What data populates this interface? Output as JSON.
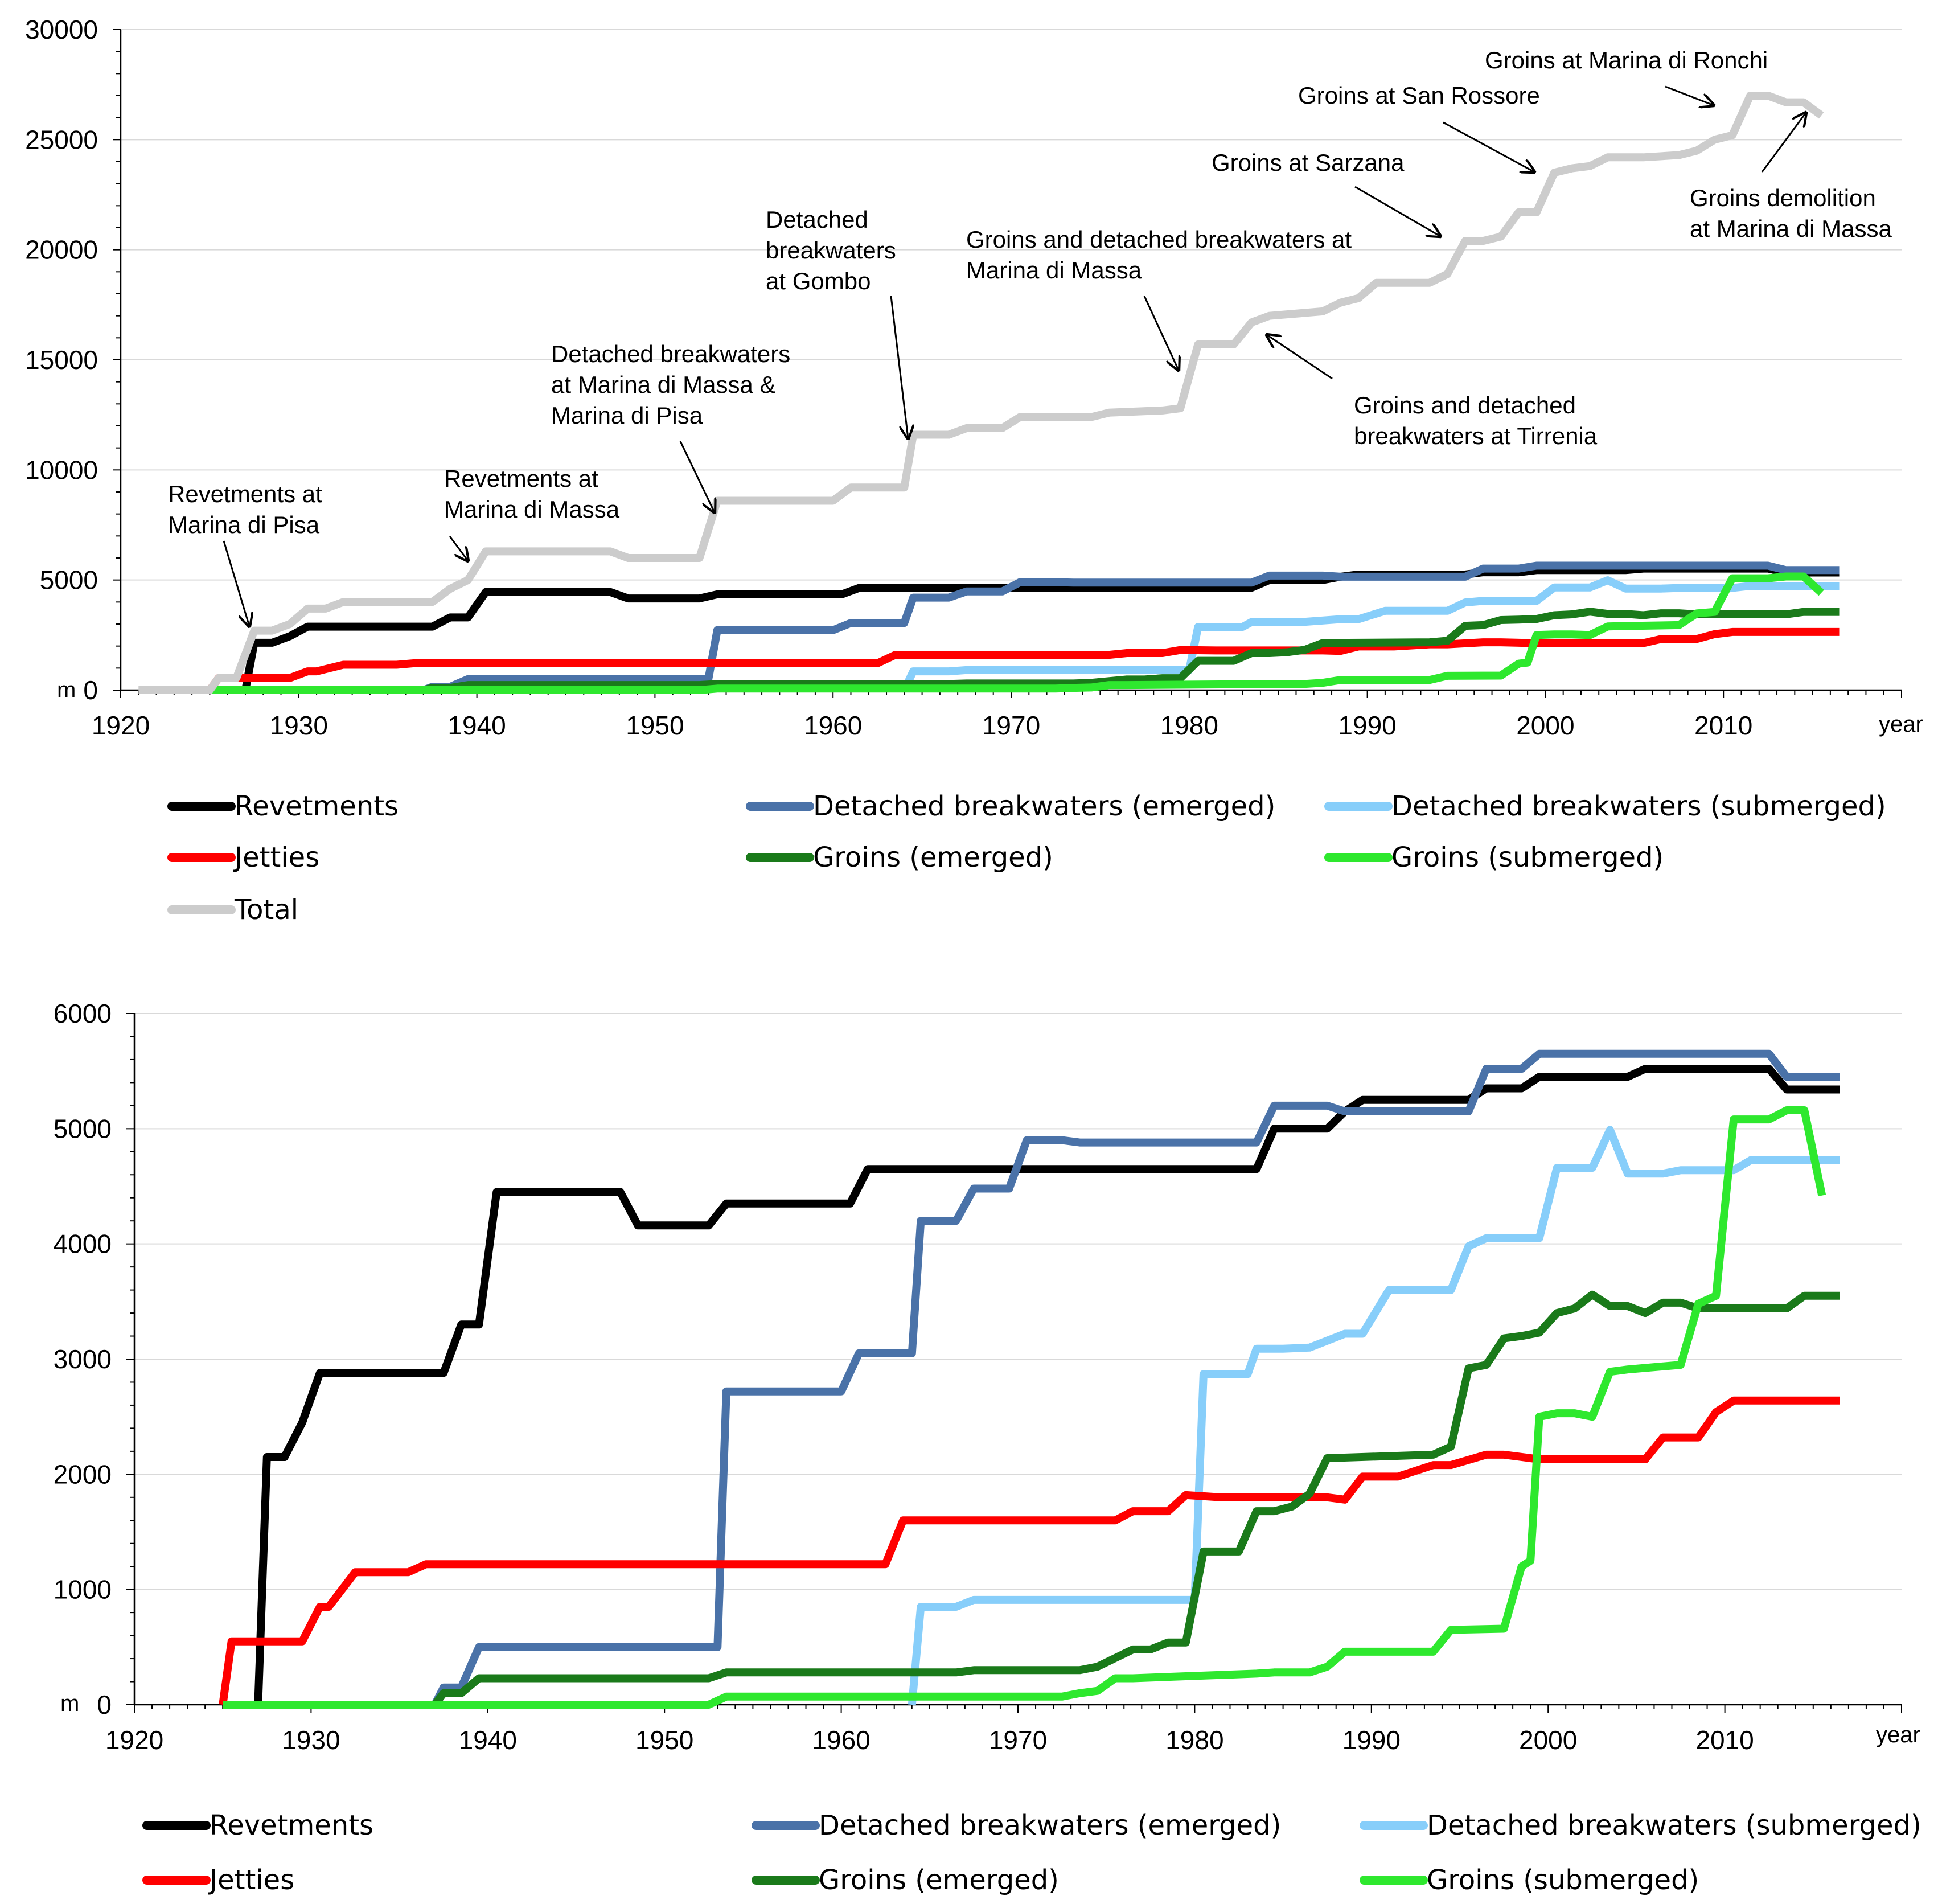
{
  "chart_data": [
    {
      "type": "line",
      "title": "",
      "xlabel": "year",
      "ylabel": "m",
      "xlim": [
        1920,
        2020
      ],
      "ylim": [
        0,
        30000
      ],
      "xticks": [
        1920,
        1930,
        1940,
        1950,
        1960,
        1970,
        1980,
        1990,
        2000,
        2010
      ],
      "yticks": [
        0,
        5000,
        10000,
        15000,
        20000,
        25000,
        30000
      ],
      "grid": true,
      "legend": "below",
      "series_keys": [
        "revetments",
        "db_emerged",
        "db_submerged",
        "jetties",
        "groins_emerged",
        "groins_submerged",
        "total"
      ],
      "annotations": [
        {
          "lines": [
            "Revetments at",
            "Marina di Pisa"
          ],
          "x": 1927,
          "y": 2800
        },
        {
          "lines": [
            "Revetments at",
            "Marina di Massa"
          ],
          "x": 1939.5,
          "y": 5900
        },
        {
          "lines": [
            "Detached breakwaters",
            "at Marina di Massa &",
            "Marina di Pisa"
          ],
          "x": 1953.5,
          "y": 8300
        },
        {
          "lines": [
            "Detached",
            "breakwaters",
            "at Gombo"
          ],
          "x": 1964.5,
          "y": 11300
        },
        {
          "lines": [
            "Groins and detached breakwaters at",
            "Marina di Massa"
          ],
          "x": 1979.5,
          "y": 14700
        },
        {
          "lines": [
            "Groins and detached",
            "breakwaters at Tirrenia"
          ],
          "x": 1985,
          "y": 16300
        },
        {
          "lines": [
            "Groins at Sarzana"
          ],
          "x": 1996,
          "y": 20500
        },
        {
          "lines": [
            "Groins at San Rossore"
          ],
          "x": 2000,
          "y": 23500
        },
        {
          "lines": [
            "Groins at Marina di Ronchi"
          ],
          "x": 2011,
          "y": 26800
        },
        {
          "lines": [
            "Groins demolition",
            "at Marina di Massa"
          ],
          "x": 2014.5,
          "y": 26500
        }
      ]
    },
    {
      "type": "line",
      "title": "",
      "xlabel": "year",
      "ylabel": "m",
      "xlim": [
        1920,
        2020
      ],
      "ylim": [
        0,
        6000
      ],
      "xticks": [
        1920,
        1930,
        1940,
        1950,
        1960,
        1970,
        1980,
        1990,
        2000,
        2010
      ],
      "yticks": [
        0,
        1000,
        2000,
        3000,
        4000,
        5000,
        6000
      ],
      "grid": true,
      "legend": "below",
      "series_keys": [
        "revetments",
        "db_emerged",
        "db_submerged",
        "jetties",
        "groins_emerged",
        "groins_submerged"
      ]
    }
  ],
  "series": {
    "revetments": {
      "name": "Revetments",
      "color": "#000000",
      "x": [
        1927,
        1927.5,
        1928.5,
        1929.5,
        1930.5,
        1931.5,
        1937.5,
        1938.5,
        1939.5,
        1940.5,
        1947.5,
        1948.5,
        1952.5,
        1953.5,
        1960.5,
        1961.5,
        1983.5,
        1984.5,
        1987.5,
        1988.5,
        1989.5,
        1995.5,
        1996.5,
        1998.5,
        1999.5,
        2004.5,
        2005.5,
        2012.5,
        2013.5,
        2016.5
      ],
      "y": [
        0,
        2150,
        2150,
        2450,
        2880,
        2880,
        2880,
        3300,
        3300,
        4450,
        4450,
        4160,
        4160,
        4350,
        4350,
        4650,
        4650,
        5000,
        5000,
        5150,
        5250,
        5250,
        5350,
        5350,
        5450,
        5450,
        5520,
        5520,
        5340,
        5340
      ]
    },
    "db_emerged": {
      "name": "Detached breakwaters (emerged)",
      "color": "#4a72a8",
      "x": [
        1937,
        1937.5,
        1938.5,
        1939.5,
        1940.5,
        1953,
        1953.5,
        1960,
        1961,
        1964,
        1964.5,
        1966.5,
        1967.5,
        1969.5,
        1970.5,
        1972.5,
        1973.5,
        1983.5,
        1984.5,
        1987.5,
        1988.5,
        1995.5,
        1996.5,
        1998.5,
        1999.5,
        2012.5,
        2013.5,
        2016.5
      ],
      "y": [
        0,
        150,
        150,
        500,
        500,
        500,
        2720,
        2720,
        3050,
        3050,
        4200,
        4200,
        4480,
        4480,
        4900,
        4900,
        4880,
        4880,
        5200,
        5200,
        5150,
        5150,
        5520,
        5520,
        5650,
        5650,
        5450,
        5450
      ]
    },
    "db_submerged": {
      "name": "Detached breakwaters (submerged)",
      "color": "#87cefa",
      "x": [
        1964,
        1964.5,
        1966.5,
        1967.5,
        1980,
        1980.5,
        1983,
        1983.5,
        1985,
        1986.5,
        1988.5,
        1989.5,
        1991,
        1991.5,
        1994.5,
        1995.5,
        1996.5,
        1999.5,
        2000.5,
        2002.5,
        2003.5,
        2004.5,
        2006.5,
        2007.5,
        2010.5,
        2011.5,
        2016.5
      ],
      "y": [
        0,
        850,
        850,
        910,
        910,
        2870,
        2870,
        3090,
        3090,
        3100,
        3220,
        3220,
        3600,
        3600,
        3600,
        3980,
        4050,
        4050,
        4660,
        4660,
        4990,
        4610,
        4610,
        4640,
        4640,
        4730,
        4730
      ]
    },
    "jetties": {
      "name": "Jetties",
      "color": "#ff0000",
      "x": [
        1925,
        1925.5,
        1929.5,
        1930.5,
        1931,
        1932.5,
        1935.5,
        1936.5,
        1962.5,
        1963.5,
        1975.5,
        1976.5,
        1978.5,
        1979.5,
        1981.5,
        1983.5,
        1987.5,
        1988.5,
        1989.5,
        1991.5,
        1993.5,
        1994.5,
        1996.5,
        1997.5,
        1999.5,
        2000.5,
        2005.5,
        2006.5,
        2008.5,
        2009.5,
        2010.5,
        2016.5
      ],
      "y": [
        0,
        550,
        550,
        850,
        850,
        1150,
        1150,
        1220,
        1220,
        1600,
        1600,
        1680,
        1680,
        1820,
        1800,
        1800,
        1800,
        1780,
        1980,
        1980,
        2080,
        2080,
        2170,
        2170,
        2130,
        2130,
        2130,
        2320,
        2320,
        2540,
        2640,
        2640
      ]
    },
    "groins_emerged": {
      "name": "Groins (emerged)",
      "color": "#1a7a1a",
      "x": [
        1937,
        1937.5,
        1938.5,
        1939.5,
        1952.5,
        1953.5,
        1966.5,
        1967.5,
        1973.5,
        1974.5,
        1976.5,
        1977.5,
        1978.5,
        1979.5,
        1980.5,
        1982.5,
        1983.5,
        1984.5,
        1985.5,
        1986.5,
        1987.5,
        1993.5,
        1994.5,
        1995.5,
        1996.5,
        1997.5,
        1998.5,
        1999.5,
        2000.5,
        2001.5,
        2002.5,
        2003.5,
        2004.5,
        2005.5,
        2006.5,
        2007.5,
        2008.5,
        2009.5,
        2010.5,
        2013.5,
        2014.5,
        2016.5
      ],
      "y": [
        0,
        100,
        100,
        230,
        230,
        280,
        280,
        300,
        300,
        330,
        480,
        480,
        540,
        540,
        1330,
        1330,
        1680,
        1680,
        1720,
        1830,
        2140,
        2170,
        2240,
        2920,
        2950,
        3180,
        3200,
        3230,
        3400,
        3440,
        3560,
        3460,
        3460,
        3400,
        3490,
        3490,
        3440,
        3440,
        3440,
        3440,
        3550,
        3550
      ]
    },
    "groins_submerged": {
      "name": "Groins (submerged)",
      "color": "#2ee82e",
      "x": [
        1925,
        1925.5,
        1952.5,
        1953.5,
        1972.5,
        1973.5,
        1974.5,
        1975.5,
        1976.5,
        1983.5,
        1984.5,
        1986.5,
        1987.5,
        1988.5,
        1993.5,
        1994.5,
        1997.5,
        1998.5,
        1999,
        1999.5,
        2000.5,
        2001.5,
        2002.5,
        2003.5,
        2004.5,
        2007.5,
        2008.5,
        2009.5,
        2010.5,
        2011.5,
        2012.5,
        2013.5,
        2014.5,
        2015.5
      ],
      "y": [
        0,
        0,
        0,
        70,
        70,
        100,
        120,
        230,
        230,
        270,
        280,
        280,
        330,
        460,
        460,
        650,
        660,
        1200,
        1250,
        2500,
        2530,
        2530,
        2500,
        2890,
        2910,
        2950,
        3480,
        3550,
        5080,
        5080,
        5080,
        5160,
        5160,
        4420
      ]
    },
    "total": {
      "name": "Total",
      "color": "#cccccc",
      "x": [
        1921,
        1925,
        1925.5,
        1926.5,
        1927.5,
        1928.5,
        1929.5,
        1930.5,
        1931.5,
        1932.5,
        1937.5,
        1938.5,
        1939.5,
        1940.5,
        1947.5,
        1948.5,
        1952.5,
        1953.5,
        1960,
        1961,
        1964,
        1964.5,
        1966.5,
        1967.5,
        1969.5,
        1970.5,
        1974.5,
        1975.5,
        1978.5,
        1979.5,
        1980.5,
        1982.5,
        1983.5,
        1984.5,
        1987.5,
        1988.5,
        1989.5,
        1990.5,
        1993.5,
        1994.5,
        1995.5,
        1996.5,
        1997.5,
        1998.5,
        1999.5,
        2000.5,
        2001.5,
        2002.5,
        2003.5,
        2004.5,
        2005.5,
        2007.5,
        2008.5,
        2009.5,
        2010.5,
        2011.5,
        2012.5,
        2013.5,
        2014.5,
        2015.5
      ],
      "y": [
        0,
        0,
        550,
        550,
        2700,
        2700,
        3000,
        3700,
        3700,
        4000,
        4000,
        4600,
        5000,
        6300,
        6300,
        6000,
        6000,
        8600,
        8600,
        9200,
        9200,
        11600,
        11600,
        11900,
        11900,
        12400,
        12400,
        12600,
        12700,
        12800,
        15700,
        15700,
        16700,
        17000,
        17200,
        17600,
        17800,
        18500,
        18500,
        18900,
        20400,
        20400,
        20600,
        21700,
        21700,
        23500,
        23700,
        23800,
        24200,
        24200,
        24200,
        24300,
        24500,
        25000,
        25200,
        27000,
        27000,
        26700,
        26700,
        26100
      ]
    }
  },
  "legend_top": {
    "items": [
      {
        "key": "revetments",
        "label": "Revetments"
      },
      {
        "key": "db_emerged",
        "label": "Detached breakwaters (emerged)"
      },
      {
        "key": "db_submerged",
        "label": "Detached breakwaters (submerged)"
      },
      {
        "key": "jetties",
        "label": "Jetties"
      },
      {
        "key": "groins_emerged",
        "label": "Groins (emerged)"
      },
      {
        "key": "groins_submerged",
        "label": "Groins (submerged)"
      },
      {
        "key": "total",
        "label": "Total"
      }
    ]
  },
  "legend_bottom": {
    "items": [
      {
        "key": "revetments",
        "label": "Revetments"
      },
      {
        "key": "db_emerged",
        "label": "Detached breakwaters (emerged)"
      },
      {
        "key": "db_submerged",
        "label": "Detached breakwaters (submerged)"
      },
      {
        "key": "jetties",
        "label": "Jetties"
      },
      {
        "key": "groins_emerged",
        "label": "Groins (emerged)"
      },
      {
        "key": "groins_submerged",
        "label": "Groins (submerged)"
      }
    ]
  }
}
